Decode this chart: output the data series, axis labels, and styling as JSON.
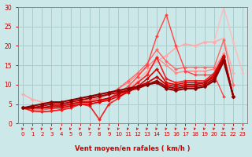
{
  "bg_color": "#cce8e8",
  "grid_color": "#aacccc",
  "xlabel": "Vent moyen/en rafales ( km/h )",
  "xlabel_color": "#cc0000",
  "tick_color": "#cc0000",
  "xlim": [
    -0.5,
    23.5
  ],
  "ylim": [
    -3,
    30
  ],
  "ylim_display": [
    0,
    30
  ],
  "xticks": [
    0,
    1,
    2,
    3,
    4,
    5,
    6,
    7,
    8,
    9,
    10,
    11,
    12,
    13,
    14,
    15,
    16,
    17,
    18,
    19,
    20,
    21,
    22,
    23
  ],
  "yticks": [
    0,
    5,
    10,
    15,
    20,
    25,
    30
  ],
  "lines": [
    {
      "x": [
        0,
        1,
        2,
        3,
        4,
        5,
        6,
        7,
        8,
        9,
        10,
        11,
        12,
        13,
        14,
        15,
        16,
        17,
        18,
        19,
        20,
        21,
        22,
        23
      ],
      "y": [
        7.5,
        6.2,
        5.5,
        5.2,
        5.2,
        5.2,
        5.5,
        5.8,
        6.0,
        6.5,
        7.5,
        9.0,
        11.0,
        13.5,
        16.0,
        17.5,
        19.5,
        20.5,
        20.0,
        21.0,
        21.0,
        30.0,
        21.0,
        13.0
      ],
      "color": "#ffbbbb",
      "lw": 1.0,
      "marker": "D",
      "ms": 2.0
    },
    {
      "x": [
        0,
        1,
        2,
        3,
        4,
        5,
        6,
        7,
        8,
        9,
        10,
        11,
        12,
        13,
        14,
        15,
        16,
        17,
        18,
        19,
        20,
        21,
        22,
        23
      ],
      "y": [
        7.5,
        6.2,
        5.5,
        5.2,
        5.2,
        5.2,
        5.5,
        5.8,
        6.0,
        6.5,
        7.5,
        9.0,
        11.0,
        13.5,
        16.0,
        17.5,
        19.5,
        20.5,
        20.0,
        21.0,
        21.0,
        22.0,
        13.0,
        null
      ],
      "color": "#ffaaaa",
      "lw": 1.0,
      "marker": "D",
      "ms": 2.0
    },
    {
      "x": [
        0,
        1,
        2,
        3,
        4,
        5,
        6,
        7,
        8,
        9,
        10,
        11,
        12,
        13,
        14,
        15,
        16,
        17,
        18,
        19,
        20,
        21,
        22,
        23
      ],
      "y": [
        4.0,
        4.0,
        4.0,
        4.0,
        4.5,
        5.0,
        5.5,
        6.0,
        6.5,
        7.5,
        9.0,
        10.5,
        12.5,
        14.5,
        17.0,
        15.0,
        13.0,
        13.5,
        13.5,
        13.5,
        14.0,
        18.0,
        7.0,
        null
      ],
      "color": "#ff8888",
      "lw": 1.0,
      "marker": "D",
      "ms": 2.0
    },
    {
      "x": [
        0,
        1,
        2,
        3,
        4,
        5,
        6,
        7,
        8,
        9,
        10,
        11,
        12,
        13,
        14,
        15,
        16,
        17,
        18,
        19,
        20,
        21,
        22,
        23
      ],
      "y": [
        4.0,
        3.5,
        3.5,
        3.8,
        4.2,
        4.8,
        5.5,
        6.0,
        6.5,
        7.5,
        9.0,
        11.0,
        13.0,
        15.5,
        19.0,
        16.0,
        14.0,
        14.5,
        14.5,
        14.5,
        14.5,
        21.5,
        10.0,
        null
      ],
      "color": "#ff6666",
      "lw": 1.0,
      "marker": "D",
      "ms": 2.0
    },
    {
      "x": [
        0,
        1,
        2,
        3,
        4,
        5,
        6,
        7,
        8,
        9,
        10,
        11,
        12,
        13,
        14,
        15,
        16,
        17,
        18,
        19,
        20,
        21,
        22,
        23
      ],
      "y": [
        4.0,
        3.2,
        3.0,
        3.2,
        3.5,
        4.0,
        5.0,
        5.0,
        5.5,
        6.5,
        8.0,
        9.5,
        12.0,
        15.0,
        22.5,
        28.0,
        20.0,
        13.5,
        12.5,
        12.5,
        12.5,
        7.0,
        null,
        null
      ],
      "color": "#ff4444",
      "lw": 1.0,
      "marker": "D",
      "ms": 2.0
    },
    {
      "x": [
        0,
        1,
        2,
        3,
        4,
        5,
        6,
        7,
        8,
        9,
        10,
        11,
        12,
        13,
        14,
        15,
        16,
        17,
        18,
        19,
        20,
        21,
        22,
        23
      ],
      "y": [
        4.0,
        3.2,
        3.0,
        3.2,
        3.5,
        4.0,
        5.0,
        4.5,
        1.0,
        5.0,
        6.5,
        8.5,
        10.5,
        12.5,
        17.0,
        11.5,
        10.5,
        11.0,
        11.0,
        11.0,
        13.0,
        17.5,
        7.0,
        null
      ],
      "color": "#ee2222",
      "lw": 1.2,
      "marker": "D",
      "ms": 2.0
    },
    {
      "x": [
        0,
        1,
        2,
        3,
        4,
        5,
        6,
        7,
        8,
        9,
        10,
        11,
        12,
        13,
        14,
        15,
        16,
        17,
        18,
        19,
        20,
        21,
        22,
        23
      ],
      "y": [
        4.0,
        4.0,
        4.0,
        4.0,
        4.0,
        4.5,
        5.0,
        5.0,
        5.5,
        6.0,
        7.0,
        8.0,
        9.5,
        11.5,
        14.0,
        10.5,
        10.0,
        10.5,
        10.5,
        10.5,
        12.5,
        17.5,
        7.0,
        null
      ],
      "color": "#dd0000",
      "lw": 1.2,
      "marker": "D",
      "ms": 2.0
    },
    {
      "x": [
        0,
        1,
        2,
        3,
        4,
        5,
        6,
        7,
        8,
        9,
        10,
        11,
        12,
        13,
        14,
        15,
        16,
        17,
        18,
        19,
        20,
        21,
        22,
        23
      ],
      "y": [
        4.0,
        4.0,
        4.0,
        4.5,
        4.5,
        5.0,
        5.5,
        5.5,
        6.0,
        6.5,
        7.5,
        8.5,
        9.5,
        10.5,
        12.0,
        10.0,
        9.5,
        10.0,
        10.0,
        10.5,
        12.0,
        17.0,
        7.0,
        null
      ],
      "color": "#cc0000",
      "lw": 1.3,
      "marker": "D",
      "ms": 2.2
    },
    {
      "x": [
        0,
        1,
        2,
        3,
        4,
        5,
        6,
        7,
        8,
        9,
        10,
        11,
        12,
        13,
        14,
        15,
        16,
        17,
        18,
        19,
        20,
        21,
        22,
        23
      ],
      "y": [
        4.0,
        4.0,
        4.5,
        5.0,
        5.0,
        5.5,
        6.0,
        6.5,
        7.0,
        7.5,
        8.0,
        8.5,
        9.0,
        10.0,
        11.0,
        9.5,
        9.0,
        9.5,
        9.5,
        10.0,
        11.5,
        16.5,
        7.0,
        null
      ],
      "color": "#aa0000",
      "lw": 1.4,
      "marker": "D",
      "ms": 2.2
    },
    {
      "x": [
        0,
        1,
        2,
        3,
        4,
        5,
        6,
        7,
        8,
        9,
        10,
        11,
        12,
        13,
        14,
        15,
        16,
        17,
        18,
        19,
        20,
        21,
        22,
        23
      ],
      "y": [
        4.0,
        4.5,
        5.0,
        5.5,
        5.5,
        6.0,
        6.5,
        7.0,
        7.5,
        8.0,
        8.5,
        9.0,
        9.5,
        10.0,
        10.5,
        9.0,
        8.5,
        9.0,
        9.0,
        9.5,
        11.0,
        16.0,
        7.0,
        null
      ],
      "color": "#880000",
      "lw": 1.5,
      "marker": "D",
      "ms": 2.5
    }
  ],
  "arrow_color": "#cc0000",
  "spine_color": "#888888"
}
